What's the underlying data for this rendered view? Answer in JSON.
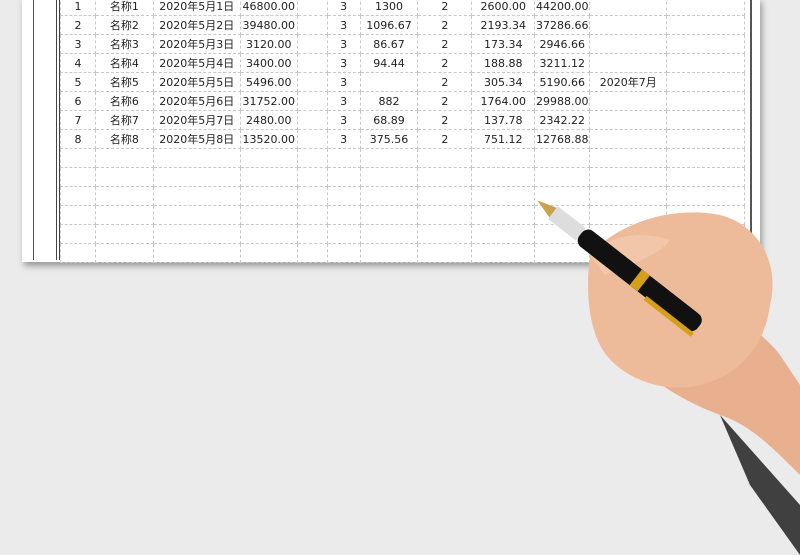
{
  "rows": [
    [
      "1",
      "名称1",
      "2020年5月1日",
      "46800.00",
      "",
      "3",
      "1300",
      "2",
      "2600.00",
      "44200.00",
      "",
      ""
    ],
    [
      "2",
      "名称2",
      "2020年5月2日",
      "39480.00",
      "",
      "3",
      "1096.67",
      "2",
      "2193.34",
      "37286.66",
      "",
      ""
    ],
    [
      "3",
      "名称3",
      "2020年5月3日",
      "3120.00",
      "",
      "3",
      "86.67",
      "2",
      "173.34",
      "2946.66",
      "",
      ""
    ],
    [
      "4",
      "名称4",
      "2020年5月4日",
      "3400.00",
      "",
      "3",
      "94.44",
      "2",
      "188.88",
      "3211.12",
      "",
      ""
    ],
    [
      "5",
      "名称5",
      "2020年5月5日",
      "5496.00",
      "",
      "3",
      "",
      "2",
      "305.34",
      "5190.66",
      "2020年7月",
      ""
    ],
    [
      "6",
      "名称6",
      "2020年5月6日",
      "31752.00",
      "",
      "3",
      "882",
      "2",
      "1764.00",
      "29988.00",
      "",
      ""
    ],
    [
      "7",
      "名称7",
      "2020年5月7日",
      "2480.00",
      "",
      "3",
      "68.89",
      "2",
      "137.78",
      "2342.22",
      "",
      ""
    ],
    [
      "8",
      "名称8",
      "2020年5月8日",
      "13520.00",
      "",
      "3",
      "375.56",
      "2",
      "751.12",
      "12768.88",
      "",
      ""
    ]
  ],
  "empty_rows": 6,
  "colors": {
    "background": "#ebebeb",
    "paper": "#ffffff",
    "grid": "#c8c8c8",
    "pen_body": "#111111",
    "pen_trim": "#d4a017"
  }
}
